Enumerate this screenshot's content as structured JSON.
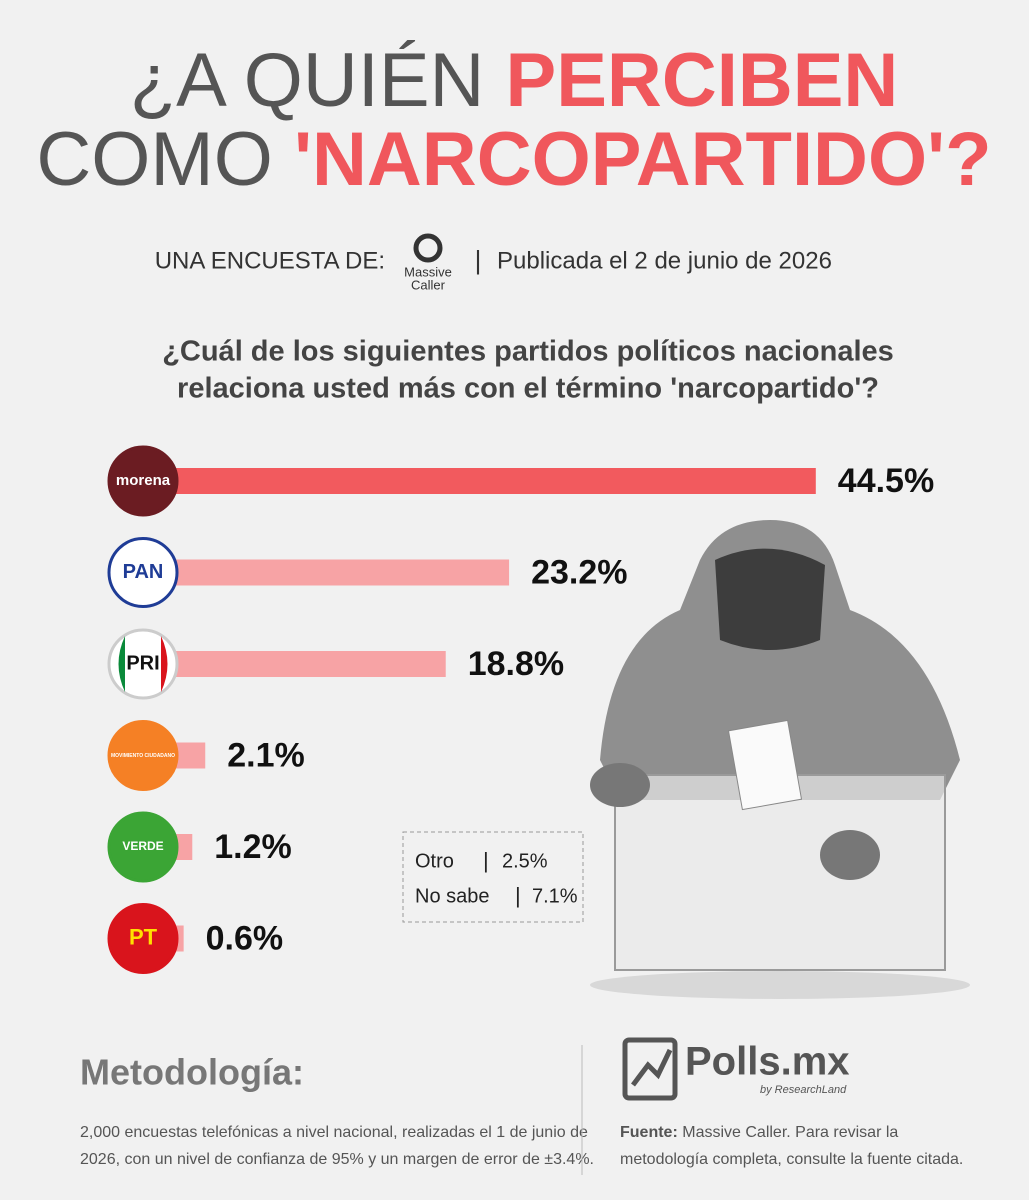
{
  "header": {
    "title_parts": [
      "¿A QUIÉN ",
      "PERCIBEN",
      "COMO ",
      "'NARCOPARTIDO'?"
    ],
    "survey_by": "UNA ENCUESTA DE:",
    "logo_line1": "Massive",
    "logo_line2": "Caller",
    "separator": "|",
    "published": "Publicada el 2 de junio de 2026"
  },
  "chart_data": {
    "type": "bar",
    "orientation": "horizontal",
    "title_lines": [
      "¿Cuál de los siguientes partidos políticos nacionales",
      "relaciona usted más con el término 'narcopartido'?"
    ],
    "categories": [
      "morena",
      "PAN",
      "PRI",
      "MOVIMIENTO CIUDADANO",
      "VERDE",
      "PT"
    ],
    "values": [
      44.5,
      23.2,
      18.8,
      2.1,
      1.2,
      0.6
    ],
    "value_labels": [
      "44.5%",
      "23.2%",
      "18.8%",
      "2.1%",
      "1.2%",
      "0.6%"
    ],
    "colors": [
      "#f25a5e",
      "#f7a3a5",
      "#f7a3a5",
      "#f7a3a5",
      "#f7a3a5",
      "#f7a3a5"
    ]
  },
  "others": [
    {
      "label": "Otro",
      "sep": "|",
      "value": "2.5%"
    },
    {
      "label": "No sabe",
      "sep": "|",
      "value": "7.1%"
    }
  ],
  "methodology": {
    "title": "Metodología:",
    "lines": [
      "2,000 encuestas telefónicas a nivel nacional, realizadas el 1 de junio de",
      "2026, con un nivel de confianza de 95% y un margen de error de ±3.4%."
    ]
  },
  "brand": {
    "name": "Polls.mx",
    "tagline": "by ResearchLand"
  },
  "source": {
    "label": "Fuente:",
    "line1": "Massive Caller. Para revisar la",
    "line2": "metodología completa, consulte la fuente citada."
  }
}
